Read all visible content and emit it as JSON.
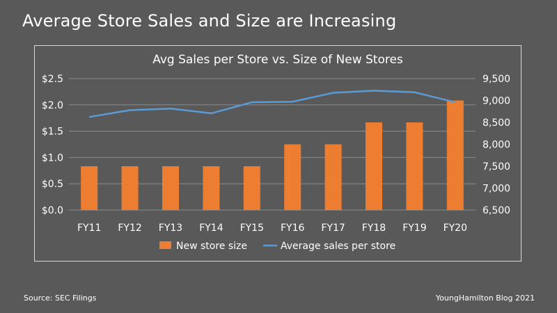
{
  "slide": {
    "title": "Average Store Sales and Size are Increasing",
    "source": "Source: SEC Filings",
    "credit": "YoungHamilton Blog 2021"
  },
  "chart_data": {
    "type": "bar",
    "title": "Avg Sales per Store vs. Size of New Stores",
    "categories": [
      "FY11",
      "FY12",
      "FY13",
      "FY14",
      "FY15",
      "FY16",
      "FY17",
      "FY18",
      "FY19",
      "FY20"
    ],
    "series": [
      {
        "name": "New store size",
        "type": "bar",
        "axis": "right",
        "color": "#ed7d31",
        "values": [
          7500,
          7500,
          7500,
          7500,
          7500,
          8000,
          8000,
          8500,
          8500,
          9000
        ]
      },
      {
        "name": "Average sales per store",
        "type": "line",
        "axis": "left",
        "color": "#5b9bd5",
        "values": [
          1.77,
          1.9,
          1.93,
          1.84,
          2.05,
          2.06,
          2.23,
          2.27,
          2.24,
          2.05
        ]
      }
    ],
    "y_left": {
      "ylim": [
        0,
        2.5
      ],
      "ticks": [
        "$0.0",
        "$0.5",
        "$1.0",
        "$1.5",
        "$2.0",
        "$2.5"
      ],
      "tick_values": [
        0,
        0.5,
        1.0,
        1.5,
        2.0,
        2.5
      ]
    },
    "y_right": {
      "ylim": [
        6500,
        9500
      ],
      "ticks": [
        "6,500",
        "7,000",
        "7,500",
        "8,000",
        "8,500",
        "9,000",
        "9,500"
      ],
      "tick_values": [
        6500,
        7000,
        7500,
        8000,
        8500,
        9000,
        9500
      ]
    },
    "grid": true,
    "legend_position": "bottom"
  },
  "colors": {
    "background": "#595959",
    "grid": "#8c8c8c",
    "bar": "#ed7d31",
    "line": "#5b9bd5"
  }
}
